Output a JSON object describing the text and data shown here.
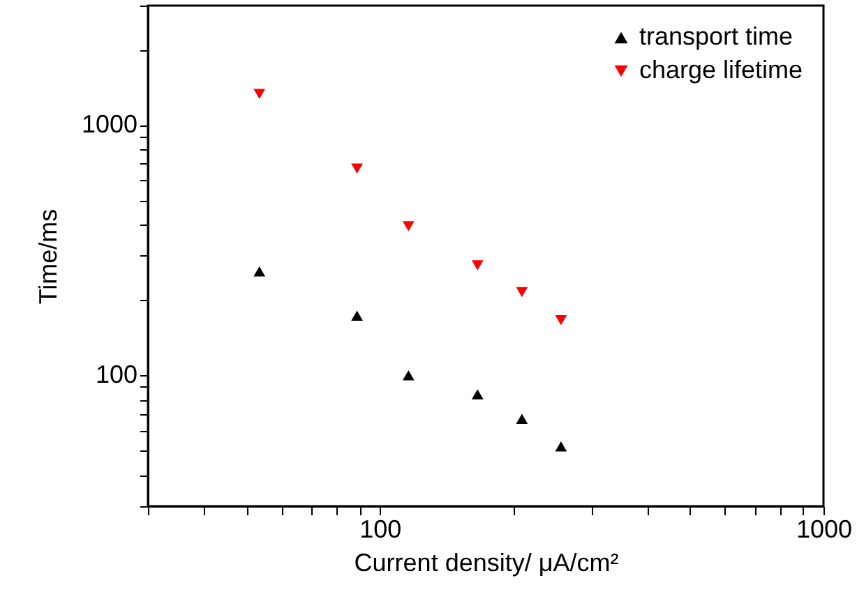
{
  "chart_data": {
    "type": "scatter",
    "xlabel": "Current density/ μA/cm²",
    "ylabel": "Time/ms",
    "log": "xy",
    "xlim": [
      30,
      1000
    ],
    "ylim": [
      30,
      3000
    ],
    "xticks": [
      {
        "value": 30,
        "label": null
      },
      {
        "value": 40,
        "label": null
      },
      {
        "value": 50,
        "label": null
      },
      {
        "value": 60,
        "label": null
      },
      {
        "value": 70,
        "label": null
      },
      {
        "value": 80,
        "label": null
      },
      {
        "value": 90,
        "label": null
      },
      100,
      {
        "value": 200,
        "label": null
      },
      {
        "value": 300,
        "label": null
      },
      {
        "value": 400,
        "label": null
      },
      {
        "value": 500,
        "label": null
      },
      {
        "value": 600,
        "label": null
      },
      {
        "value": 700,
        "label": null
      },
      {
        "value": 800,
        "label": null
      },
      {
        "value": 900,
        "label": null
      },
      1000
    ],
    "yticks": [
      {
        "value": 30,
        "label": null
      },
      {
        "value": 40,
        "label": null
      },
      {
        "value": 50,
        "label": null
      },
      {
        "value": 60,
        "label": null
      },
      {
        "value": 70,
        "label": null
      },
      {
        "value": 80,
        "label": null
      },
      {
        "value": 90,
        "label": null
      },
      100,
      {
        "value": 200,
        "label": null
      },
      {
        "value": 300,
        "label": null
      },
      {
        "value": 400,
        "label": null
      },
      {
        "value": 500,
        "label": null
      },
      {
        "value": 600,
        "label": null
      },
      {
        "value": 700,
        "label": null
      },
      {
        "value": 800,
        "label": null
      },
      {
        "value": 900,
        "label": null
      },
      1000,
      {
        "value": 2000,
        "label": null
      },
      {
        "value": 3000,
        "label": null
      }
    ],
    "x": [
      53.5,
      88.8,
      116,
      166,
      209,
      256
    ],
    "series": [
      {
        "name": "transport time",
        "color": "#000000",
        "marker": "triangle",
        "values": [
          260,
          173,
          100,
          84,
          67,
          52
        ]
      },
      {
        "name": "charge lifetime",
        "color": "#ff0000",
        "marker": "triangle-down",
        "values": [
          1330,
          670,
          394,
          275,
          215,
          166
        ]
      }
    ],
    "legend": "top right",
    "grid": false
  }
}
